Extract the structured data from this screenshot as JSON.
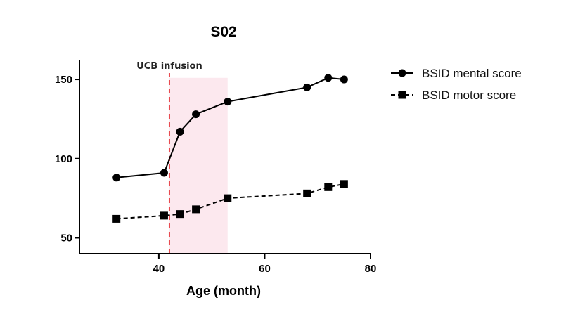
{
  "chart_data": {
    "type": "line",
    "title": "S02",
    "xlabel": "Age (month)",
    "ylabel": "",
    "xlim": [
      25,
      80
    ],
    "ylim": [
      40,
      162
    ],
    "xticks": [
      40,
      60,
      80
    ],
    "yticks": [
      50,
      100,
      150
    ],
    "series": [
      {
        "name": "BSID mental score",
        "marker": "circle",
        "line": "solid",
        "x": [
          32,
          41,
          44,
          47,
          53,
          68,
          72,
          75
        ],
        "y": [
          88,
          91,
          117,
          128,
          136,
          145,
          151,
          150
        ]
      },
      {
        "name": "BSID motor score",
        "marker": "square",
        "line": "dashed",
        "x": [
          32,
          41,
          44,
          47,
          53,
          68,
          72,
          75
        ],
        "y": [
          62,
          64,
          65,
          68,
          75,
          78,
          82,
          84
        ]
      }
    ],
    "annotations": {
      "vline": {
        "x": 42,
        "label": "UCB infusion",
        "color": "#e8454b"
      },
      "shaded_region": {
        "x": [
          42,
          53
        ],
        "y": [
          40,
          151
        ],
        "color": "#fce8ee"
      }
    },
    "legend_position": "right"
  }
}
